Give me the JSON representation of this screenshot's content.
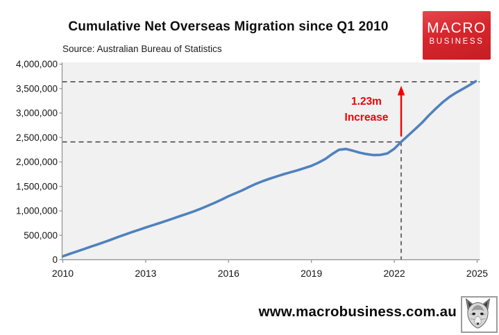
{
  "page": {
    "background": "#ffffff"
  },
  "header": {
    "logo": {
      "line1": "MACRO",
      "line2": "BUSINESS",
      "bg": "#d6262c",
      "text_color": "#ffffff"
    }
  },
  "footer": {
    "url": "www.macrobusiness.com.au",
    "logo_icon": "fox-head-sketch-icon"
  },
  "chart_data": {
    "type": "line",
    "title": "Cumulative Net Overseas Migration since Q1 2010",
    "source": "Source: Australian Bureau of Statistics",
    "xlabel": "",
    "ylabel": "",
    "xlim": [
      2010,
      2025.1
    ],
    "ylim": [
      0,
      4000000
    ],
    "grid": false,
    "legend": "none",
    "plot_bg": "#f1f1f1",
    "axis_color": "#8f8f8f",
    "tick_label_color": "#141414",
    "x_ticks": [
      2010,
      2013,
      2016,
      2019,
      2022,
      2025
    ],
    "x_tick_labels": [
      "2010",
      "2013",
      "2016",
      "2019",
      "2022",
      "2025"
    ],
    "y_ticks": [
      0,
      500000,
      1000000,
      1500000,
      2000000,
      2500000,
      3000000,
      3500000,
      4000000
    ],
    "y_tick_labels": [
      "0",
      "500,000",
      "1,000,000",
      "1,500,000",
      "2,000,000",
      "2,500,000",
      "3,000,000",
      "3,500,000",
      "4,000,000"
    ],
    "series": [
      {
        "name": "Cumulative net overseas migration",
        "color": "#4F81BD",
        "points": [
          [
            2010.0,
            70000
          ],
          [
            2010.25,
            120000
          ],
          [
            2010.5,
            168000
          ],
          [
            2010.75,
            215000
          ],
          [
            2011.0,
            265000
          ],
          [
            2011.25,
            312000
          ],
          [
            2011.5,
            360000
          ],
          [
            2011.75,
            412000
          ],
          [
            2012.0,
            465000
          ],
          [
            2012.25,
            515000
          ],
          [
            2012.5,
            565000
          ],
          [
            2012.75,
            612000
          ],
          [
            2013.0,
            660000
          ],
          [
            2013.25,
            705000
          ],
          [
            2013.5,
            750000
          ],
          [
            2013.75,
            797000
          ],
          [
            2014.0,
            845000
          ],
          [
            2014.25,
            893000
          ],
          [
            2014.5,
            940000
          ],
          [
            2014.75,
            990000
          ],
          [
            2015.0,
            1045000
          ],
          [
            2015.25,
            1105000
          ],
          [
            2015.5,
            1165000
          ],
          [
            2015.75,
            1230000
          ],
          [
            2016.0,
            1300000
          ],
          [
            2016.25,
            1360000
          ],
          [
            2016.5,
            1420000
          ],
          [
            2016.75,
            1490000
          ],
          [
            2017.0,
            1555000
          ],
          [
            2017.25,
            1610000
          ],
          [
            2017.5,
            1660000
          ],
          [
            2017.75,
            1705000
          ],
          [
            2018.0,
            1750000
          ],
          [
            2018.25,
            1790000
          ],
          [
            2018.5,
            1830000
          ],
          [
            2018.75,
            1875000
          ],
          [
            2019.0,
            1920000
          ],
          [
            2019.25,
            1985000
          ],
          [
            2019.5,
            2060000
          ],
          [
            2019.75,
            2160000
          ],
          [
            2020.0,
            2250000
          ],
          [
            2020.25,
            2265000
          ],
          [
            2020.5,
            2230000
          ],
          [
            2020.75,
            2190000
          ],
          [
            2021.0,
            2160000
          ],
          [
            2021.25,
            2140000
          ],
          [
            2021.5,
            2145000
          ],
          [
            2021.75,
            2175000
          ],
          [
            2022.0,
            2270000
          ],
          [
            2022.25,
            2410000
          ],
          [
            2022.5,
            2540000
          ],
          [
            2022.75,
            2670000
          ],
          [
            2023.0,
            2800000
          ],
          [
            2023.25,
            2950000
          ],
          [
            2023.5,
            3090000
          ],
          [
            2023.75,
            3220000
          ],
          [
            2024.0,
            3330000
          ],
          [
            2024.25,
            3420000
          ],
          [
            2024.5,
            3500000
          ],
          [
            2024.75,
            3580000
          ],
          [
            2024.95,
            3650000
          ]
        ]
      }
    ],
    "annotations": {
      "dashed_color": "#3f3f3f",
      "upper_dashed_value": 3640000,
      "lower_dashed_value": 2410000,
      "vertical_dashed_x": 2022.25,
      "arrow": {
        "x": 2022.25,
        "from_value": 2520000,
        "to_value": 3560000,
        "color": "#f40000"
      },
      "label": {
        "line1": "1.23m",
        "line2": "Increase",
        "color": "#f40000"
      }
    }
  }
}
